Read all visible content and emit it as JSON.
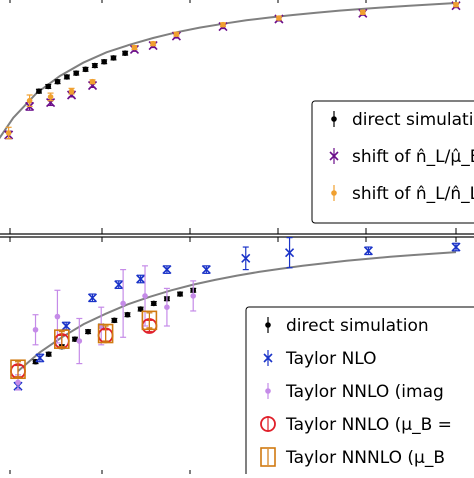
{
  "chart_data": [
    {
      "type": "scatter",
      "panel": "top",
      "title": "",
      "xlabel": "",
      "ylabel": "",
      "xlim": [
        0,
        1
      ],
      "ylim": [
        0,
        1
      ],
      "grid": false,
      "legend": {
        "placement": "bottom-right",
        "entries": [
          "direct simulation",
          "shift of n̂_L/μ̂_B",
          "shift of n̂_L/n̂_L^SBL"
        ]
      },
      "curve": {
        "name": "",
        "color": "#808080",
        "x": [
          0.0,
          0.05,
          0.1,
          0.15,
          0.2,
          0.25,
          0.3,
          0.35,
          0.4,
          0.45,
          0.5,
          0.55,
          0.6,
          0.65,
          0.7,
          0.75,
          0.8,
          0.85,
          0.9,
          0.95,
          1.0
        ],
        "y": [
          0.2,
          0.38,
          0.51,
          0.6,
          0.67,
          0.725,
          0.765,
          0.8,
          0.83,
          0.855,
          0.875,
          0.893,
          0.908,
          0.921,
          0.933,
          0.944,
          0.953,
          0.962,
          0.97,
          0.977,
          0.984
        ]
      },
      "series": [
        {
          "name": "direct simulation",
          "color": "#000000",
          "marker": "dot",
          "x": [
            0.105,
            0.125,
            0.145,
            0.165,
            0.185,
            0.205,
            0.225,
            0.245,
            0.265,
            0.29
          ],
          "y": [
            0.52,
            0.545,
            0.57,
            0.595,
            0.615,
            0.635,
            0.655,
            0.675,
            0.695,
            0.72
          ],
          "err": [
            0.01,
            0.01,
            0.01,
            0.01,
            0.01,
            0.01,
            0.01,
            0.01,
            0.01,
            0.01
          ]
        },
        {
          "name": "shift of n̂_L/μ̂_B",
          "color": "#6a0d8a",
          "marker": "x",
          "x": [
            0.0,
            0.04,
            0.085,
            0.13,
            0.175,
            0.22,
            0.31,
            0.35,
            0.4,
            0.5,
            0.62,
            0.8,
            1.0
          ],
          "y": [
            0.18,
            0.29,
            0.44,
            0.46,
            0.5,
            0.55,
            0.74,
            0.76,
            0.81,
            0.86,
            0.9,
            0.93,
            0.97
          ],
          "err": [
            0.02,
            0.02,
            0.02,
            0.015,
            0.01,
            0.01,
            0.01,
            0.01,
            0.01,
            0.01,
            0.01,
            0.01,
            0.01
          ]
        },
        {
          "name": "shift of n̂_L/n̂_L^SBL",
          "color": "#f0a030",
          "marker": "dot",
          "x": [
            0.0,
            0.04,
            0.085,
            0.13,
            0.175,
            0.22,
            0.31,
            0.35,
            0.4,
            0.5,
            0.62,
            0.8,
            1.0
          ],
          "y": [
            0.2,
            0.3,
            0.47,
            0.49,
            0.52,
            0.57,
            0.75,
            0.77,
            0.82,
            0.87,
            0.905,
            0.935,
            0.975
          ],
          "err": [
            0.03,
            0.03,
            0.03,
            0.02,
            0.015,
            0.01,
            0.01,
            0.01,
            0.01,
            0.01,
            0.01,
            0.01,
            0.01
          ]
        }
      ]
    },
    {
      "type": "scatter",
      "panel": "bottom",
      "title": "",
      "xlabel": "",
      "ylabel": "",
      "xlim": [
        0,
        1
      ],
      "ylim": [
        0,
        1
      ],
      "grid": false,
      "legend": {
        "placement": "bottom-right",
        "entries": [
          "direct simulation",
          "Taylor NLO",
          "Taylor NNLO (imag",
          "Taylor NNLO (μ_B =",
          "Taylor NNNLO (μ_B"
        ]
      },
      "curve": {
        "name": "",
        "color": "#808080",
        "x": [
          0.0,
          0.05,
          0.1,
          0.15,
          0.2,
          0.25,
          0.3,
          0.35,
          0.4,
          0.45,
          0.5,
          0.55,
          0.6,
          0.65,
          0.7,
          0.75,
          0.8,
          0.85,
          0.9,
          0.95,
          1.0
        ],
        "y": [
          0.26,
          0.36,
          0.44,
          0.51,
          0.565,
          0.615,
          0.655,
          0.69,
          0.72,
          0.745,
          0.768,
          0.788,
          0.805,
          0.82,
          0.834,
          0.847,
          0.858,
          0.868,
          0.877,
          0.885,
          0.893
        ]
      },
      "series": [
        {
          "name": "direct simulation",
          "color": "#000000",
          "marker": "dot",
          "x": [
            0.04,
            0.07,
            0.1,
            0.13,
            0.16,
            0.19,
            0.22,
            0.25,
            0.28,
            0.31,
            0.34,
            0.37,
            0.4
          ],
          "y": [
            0.31,
            0.35,
            0.39,
            0.43,
            0.47,
            0.5,
            0.53,
            0.56,
            0.59,
            0.62,
            0.645,
            0.67,
            0.69
          ],
          "err": [
            0.01,
            0.01,
            0.01,
            0.01,
            0.01,
            0.01,
            0.01,
            0.01,
            0.01,
            0.01,
            0.01,
            0.01,
            0.01
          ]
        },
        {
          "name": "Taylor NLO",
          "color": "#1a33c8",
          "marker": "x",
          "x": [
            0.0,
            0.05,
            0.11,
            0.17,
            0.23,
            0.28,
            0.34,
            0.43,
            0.52,
            0.62,
            0.8,
            1.0
          ],
          "y": [
            0.18,
            0.33,
            0.5,
            0.65,
            0.72,
            0.75,
            0.8,
            0.8,
            0.86,
            0.89,
            0.9,
            0.92
          ],
          "err": [
            0.02,
            0.02,
            0.02,
            0.02,
            0.02,
            0.02,
            0.02,
            0.02,
            0.06,
            0.08,
            0.02,
            0.02
          ]
        },
        {
          "name": "Taylor NNLO (imag",
          "color": "#c58be8",
          "marker": "dot",
          "x": [
            0.0,
            0.04,
            0.09,
            0.14,
            0.19,
            0.24,
            0.29,
            0.34,
            0.4
          ],
          "y": [
            0.2,
            0.48,
            0.55,
            0.42,
            0.5,
            0.62,
            0.66,
            0.6,
            0.66
          ],
          "err": [
            0.04,
            0.08,
            0.14,
            0.12,
            0.1,
            0.18,
            0.16,
            0.1,
            0.08
          ]
        },
        {
          "name": "Taylor NNLO (μ_B =",
          "color": "#e0202a",
          "marker": "circle",
          "x": [
            0.0,
            0.1,
            0.2,
            0.3
          ],
          "y": [
            0.26,
            0.42,
            0.45,
            0.5
          ],
          "err": [
            0.03,
            0.03,
            0.03,
            0.03
          ]
        },
        {
          "name": "Taylor NNNLO (μ_B",
          "color": "#d07a10",
          "marker": "square",
          "x": [
            0.0,
            0.1,
            0.2,
            0.3
          ],
          "y": [
            0.27,
            0.43,
            0.46,
            0.53
          ],
          "err": [
            0.04,
            0.04,
            0.04,
            0.04
          ]
        }
      ]
    }
  ]
}
